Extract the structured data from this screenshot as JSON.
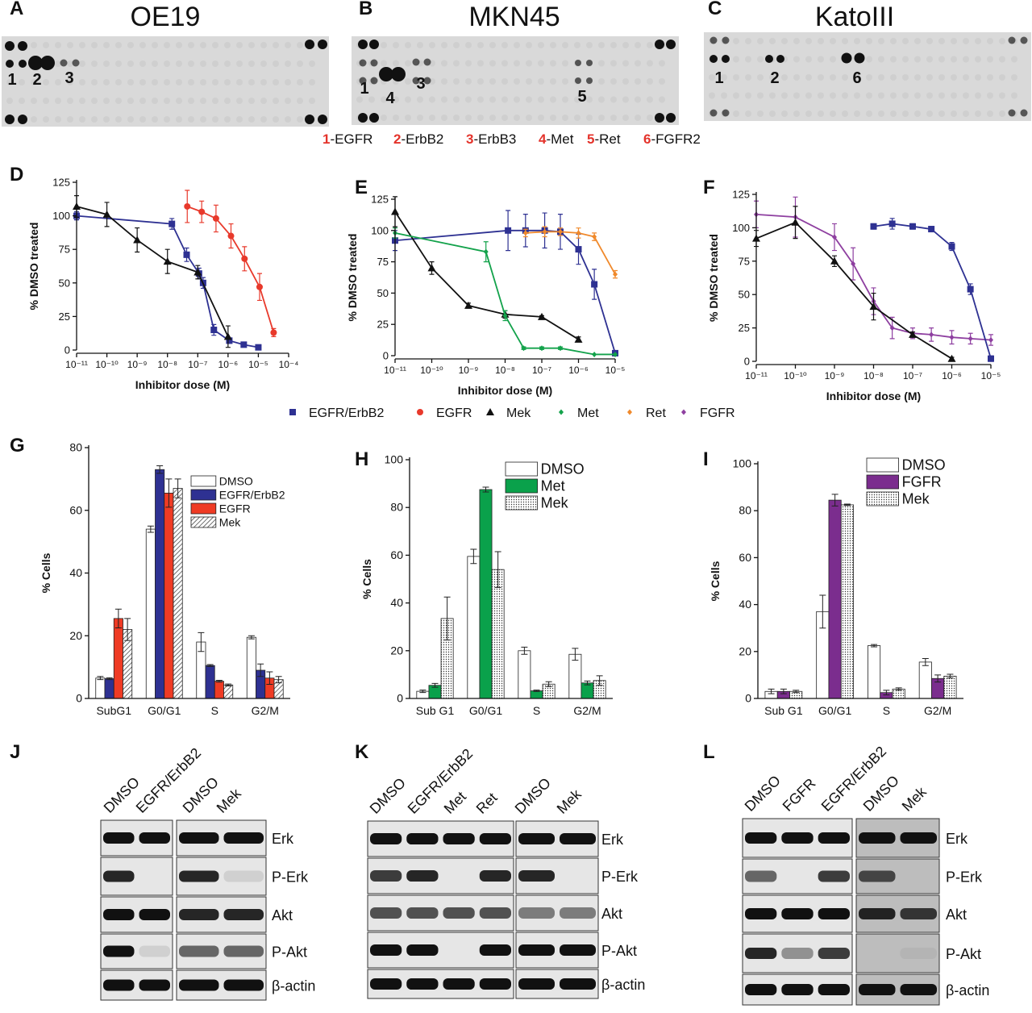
{
  "panel_labels": [
    "A",
    "B",
    "C",
    "D",
    "E",
    "F",
    "G",
    "H",
    "I",
    "J",
    "K",
    "L"
  ],
  "arrays": [
    {
      "title": "OE19",
      "spots": [
        "1",
        "2",
        "3"
      ]
    },
    {
      "title": "MKN45",
      "spots": [
        "1",
        "4",
        "3",
        "5"
      ]
    },
    {
      "title": "KatoIII",
      "spots": [
        "1",
        "2",
        "6"
      ]
    }
  ],
  "array_legend": [
    {
      "num": "1",
      "name": "-EGFR"
    },
    {
      "num": "2",
      "name": "-ErbB2"
    },
    {
      "num": "3",
      "name": "-ErbB3"
    },
    {
      "num": "4",
      "name": "-Met"
    },
    {
      "num": "5",
      "name": "-Ret"
    },
    {
      "num": "6",
      "name": "-FGFR2"
    }
  ],
  "dose_legend": [
    {
      "name": "EGFR/ErbB2",
      "color": "#2e3192",
      "marker": "square"
    },
    {
      "name": "EGFR",
      "color": "#e8392b",
      "marker": "circle"
    },
    {
      "name": "Mek",
      "color": "#111111",
      "marker": "triangle"
    },
    {
      "name": "Met",
      "color": "#13a24b",
      "marker": "diamond"
    },
    {
      "name": "Ret",
      "color": "#f0892b",
      "marker": "diamond"
    },
    {
      "name": "FGFR",
      "color": "#8e3fa0",
      "marker": "diamond"
    }
  ],
  "chart_data": [
    {
      "type": "line",
      "xlog": true,
      "xlabel": "Inhibitor dose (M)",
      "ylabel": "% DMSO treated",
      "xlim": [
        1e-11,
        0.0001
      ],
      "xticks": [
        {
          "value": 1e-11,
          "label": "10⁻¹¹"
        },
        {
          "value": 1e-10,
          "label": "10⁻¹⁰"
        },
        {
          "value": 1e-09,
          "label": "10⁻⁹"
        },
        {
          "value": 1e-08,
          "label": "10⁻⁸"
        },
        {
          "value": 1e-07,
          "label": "10⁻⁷"
        },
        {
          "value": 1e-06,
          "label": "10⁻⁶"
        },
        {
          "value": 1e-05,
          "label": "10⁻⁵"
        },
        {
          "value": 0.0001,
          "label": "10⁻⁴"
        }
      ],
      "ylim": [
        0,
        125
      ],
      "yticks": [
        0,
        25,
        50,
        75,
        100,
        125
      ],
      "series": [
        {
          "name": "EGFR/ErbB2",
          "x": [
            1e-11,
            1.4e-08,
            4.3e-08,
            1.1e-07,
            1.5e-07,
            3.4e-07,
            1.1e-06,
            3.3e-06,
            1e-05
          ],
          "values": [
            100,
            94,
            71,
            57,
            50,
            15,
            7,
            4,
            2
          ],
          "errors": [
            3,
            4,
            5,
            4,
            4,
            4,
            2,
            1,
            1
          ]
        },
        {
          "name": "EGFR",
          "x": [
            4.5e-08,
            1.35e-07,
            4e-07,
            1.25e-06,
            3.5e-06,
            1.1e-05,
            3.2e-05
          ],
          "values": [
            107,
            103,
            98,
            85,
            68,
            47,
            13
          ],
          "errors": [
            12,
            8,
            10,
            9,
            9,
            10,
            3
          ]
        },
        {
          "name": "Mek",
          "x": [
            1e-11,
            1e-10,
            1e-09,
            1e-08,
            1e-07,
            1e-06
          ],
          "values": [
            107,
            101,
            82,
            66,
            58,
            10
          ],
          "errors": [
            8,
            9,
            9,
            9,
            5,
            8
          ]
        }
      ]
    },
    {
      "type": "line",
      "xlog": true,
      "xlabel": "Inhibitor dose (M)",
      "ylabel": "% DMSO treated",
      "xlim": [
        1e-11,
        1e-05
      ],
      "xticks": [
        {
          "value": 1e-11,
          "label": "10⁻¹¹"
        },
        {
          "value": 1e-10,
          "label": "10⁻¹⁰"
        },
        {
          "value": 1e-09,
          "label": "10⁻⁹"
        },
        {
          "value": 1e-08,
          "label": "10⁻⁸"
        },
        {
          "value": 1e-07,
          "label": "10⁻⁷"
        },
        {
          "value": 1e-06,
          "label": "10⁻⁶"
        },
        {
          "value": 1e-05,
          "label": "10⁻⁵"
        }
      ],
      "ylim": [
        0,
        125
      ],
      "yticks": [
        0,
        25,
        50,
        75,
        100,
        125
      ],
      "series": [
        {
          "name": "EGFR/ErbB2",
          "x": [
            1e-11,
            1.2e-08,
            3.6e-08,
            1.2e-07,
            3.2e-07,
            1e-06,
            2.7e-06,
            1e-05
          ],
          "values": [
            92,
            100,
            100,
            100,
            99,
            85,
            57,
            2
          ],
          "errors": [
            8,
            16,
            13,
            14,
            14,
            12,
            12,
            2
          ]
        },
        {
          "name": "Mek",
          "x": [
            1e-11,
            1e-10,
            1e-09,
            1e-08,
            1e-07,
            1e-06
          ],
          "values": [
            115,
            70,
            40,
            33,
            31,
            13
          ],
          "errors": [
            12,
            5,
            2,
            3,
            1,
            2
          ]
        },
        {
          "name": "Met",
          "x": [
            1e-11,
            3e-09,
            1e-08,
            3.2e-08,
            1e-07,
            3.2e-07,
            2.7e-06,
            1e-05
          ],
          "values": [
            98,
            83,
            32,
            6,
            6,
            6,
            1,
            1
          ],
          "errors": [
            4,
            8,
            4,
            1,
            1,
            1,
            0,
            0
          ]
        },
        {
          "name": "Ret",
          "x": [
            3.6e-08,
            1.2e-07,
            3.2e-07,
            1e-06,
            2.7e-06,
            1e-05
          ],
          "values": [
            98,
            99,
            99,
            98,
            95,
            65
          ],
          "errors": [
            3,
            4,
            3,
            4,
            3,
            3
          ]
        }
      ]
    },
    {
      "type": "line",
      "xlog": true,
      "xlabel": "Inhibitor dose (M)",
      "ylabel": "% DMSO treated",
      "xlim": [
        1e-11,
        1e-05
      ],
      "xticks": [
        {
          "value": 1e-11,
          "label": "10⁻¹¹"
        },
        {
          "value": 1e-10,
          "label": "10⁻¹⁰"
        },
        {
          "value": 1e-09,
          "label": "10⁻⁹"
        },
        {
          "value": 1e-08,
          "label": "10⁻⁸"
        },
        {
          "value": 1e-07,
          "label": "10⁻⁷"
        },
        {
          "value": 1e-06,
          "label": "10⁻⁶"
        },
        {
          "value": 1e-05,
          "label": "10⁻⁵"
        }
      ],
      "ylim": [
        0,
        125
      ],
      "yticks": [
        0,
        25,
        50,
        75,
        100,
        125
      ],
      "series": [
        {
          "name": "FGFR",
          "x": [
            1e-11,
            1e-10,
            1e-09,
            3e-09,
            1e-08,
            3e-08,
            1e-07,
            3e-07,
            1e-06,
            3e-06,
            1e-05
          ],
          "values": [
            110,
            108,
            93,
            73,
            45,
            25,
            21,
            20,
            18,
            17,
            16
          ],
          "errors": [
            10,
            15,
            10,
            12,
            10,
            8,
            4,
            5,
            5,
            4,
            4
          ]
        },
        {
          "name": "Mek",
          "x": [
            1e-11,
            1e-10,
            1e-09,
            1e-08,
            1e-07,
            1e-06
          ],
          "values": [
            92,
            104,
            75,
            41,
            20,
            2
          ],
          "errors": [
            6,
            12,
            4,
            10,
            2,
            1
          ]
        },
        {
          "name": "EGFR/ErbB2",
          "x": [
            1e-08,
            3e-08,
            1e-07,
            3e-07,
            1e-06,
            3e-06,
            1e-05
          ],
          "values": [
            101,
            103,
            101,
            99,
            86,
            54,
            2
          ],
          "errors": [
            2,
            4,
            2,
            2,
            3,
            4,
            2
          ]
        }
      ]
    },
    {
      "type": "bar",
      "ylabel": "% Cells",
      "categories": [
        "SubG1",
        "G0/G1",
        "S",
        "G2/M"
      ],
      "ylim": [
        0,
        80
      ],
      "yticks": [
        0,
        20,
        40,
        60,
        80
      ],
      "series": [
        {
          "name": "DMSO",
          "color": "#ffffff",
          "values": [
            6.5,
            54,
            18,
            19.5
          ],
          "errors": [
            0.5,
            1,
            3,
            0.5
          ]
        },
        {
          "name": "EGFR/ErbB2",
          "color": "#2e3192",
          "values": [
            6.3,
            73,
            10.5,
            9
          ],
          "errors": [
            0.3,
            1.2,
            0.3,
            2
          ]
        },
        {
          "name": "EGFR",
          "color": "#ef3b24",
          "values": [
            25.5,
            65.5,
            5.5,
            6.5
          ],
          "errors": [
            3,
            4.5,
            0.3,
            2
          ]
        },
        {
          "name": "Mek",
          "color": "#ffffff",
          "pattern": "hatch",
          "values": [
            22,
            67,
            4.3,
            6
          ],
          "errors": [
            3.5,
            3,
            0.3,
            1
          ]
        }
      ]
    },
    {
      "type": "bar",
      "ylabel": "% Cells",
      "categories": [
        "Sub G1",
        "G0/G1",
        "S",
        "G2/M"
      ],
      "ylim": [
        0,
        100
      ],
      "yticks": [
        0,
        20,
        40,
        60,
        80,
        100
      ],
      "series": [
        {
          "name": "DMSO",
          "color": "#ffffff",
          "values": [
            3,
            59.5,
            20,
            18.5
          ],
          "errors": [
            0.5,
            3,
            1.5,
            2.5
          ]
        },
        {
          "name": "Met",
          "color": "#0aa14b",
          "values": [
            5.5,
            87.5,
            3.2,
            6.5
          ],
          "errors": [
            0.8,
            1,
            0.3,
            0.8
          ]
        },
        {
          "name": "Mek",
          "color": "#ffffff",
          "pattern": "dots",
          "values": [
            33.5,
            54,
            6,
            7.5
          ],
          "errors": [
            9,
            7.5,
            1,
            2
          ]
        }
      ]
    },
    {
      "type": "bar",
      "ylabel": "% Cells",
      "categories": [
        "Sub G1",
        "G0/G1",
        "S",
        "G2/M"
      ],
      "ylim": [
        0,
        100
      ],
      "yticks": [
        0,
        20,
        40,
        60,
        80,
        100
      ],
      "series": [
        {
          "name": "DMSO",
          "color": "#ffffff",
          "values": [
            3,
            37,
            22.5,
            15.5
          ],
          "errors": [
            1,
            7,
            0.5,
            1.5
          ]
        },
        {
          "name": "FGFR",
          "color": "#7b2d8e",
          "values": [
            3,
            84.5,
            2.5,
            8.5
          ],
          "errors": [
            1,
            2.5,
            1,
            1.5
          ]
        },
        {
          "name": "Mek",
          "color": "#ffffff",
          "pattern": "dots",
          "values": [
            3,
            82.5,
            4,
            9.5
          ],
          "errors": [
            0.5,
            0.3,
            0.5,
            0.8
          ]
        }
      ]
    }
  ],
  "blots": [
    {
      "lanes": [
        "DMSO",
        "EGFR/ErbB2",
        "DMSO",
        "Mek"
      ],
      "rows": [
        "Erk",
        "P-Erk",
        "Akt",
        "P-Akt",
        "β-actin"
      ]
    },
    {
      "lanes": [
        "DMSO",
        "EGFR/ErbB2",
        "Met",
        "Ret",
        "DMSO",
        "Mek"
      ],
      "rows": [
        "Erk",
        "P-Erk",
        "Akt",
        "P-Akt",
        "β-actin"
      ]
    },
    {
      "lanes": [
        "DMSO",
        "FGFR",
        "EGFR/ErbB2",
        "DMSO",
        "Mek"
      ],
      "rows": [
        "Erk",
        "P-Erk",
        "Akt",
        "P-Akt",
        "β-actin"
      ]
    }
  ]
}
